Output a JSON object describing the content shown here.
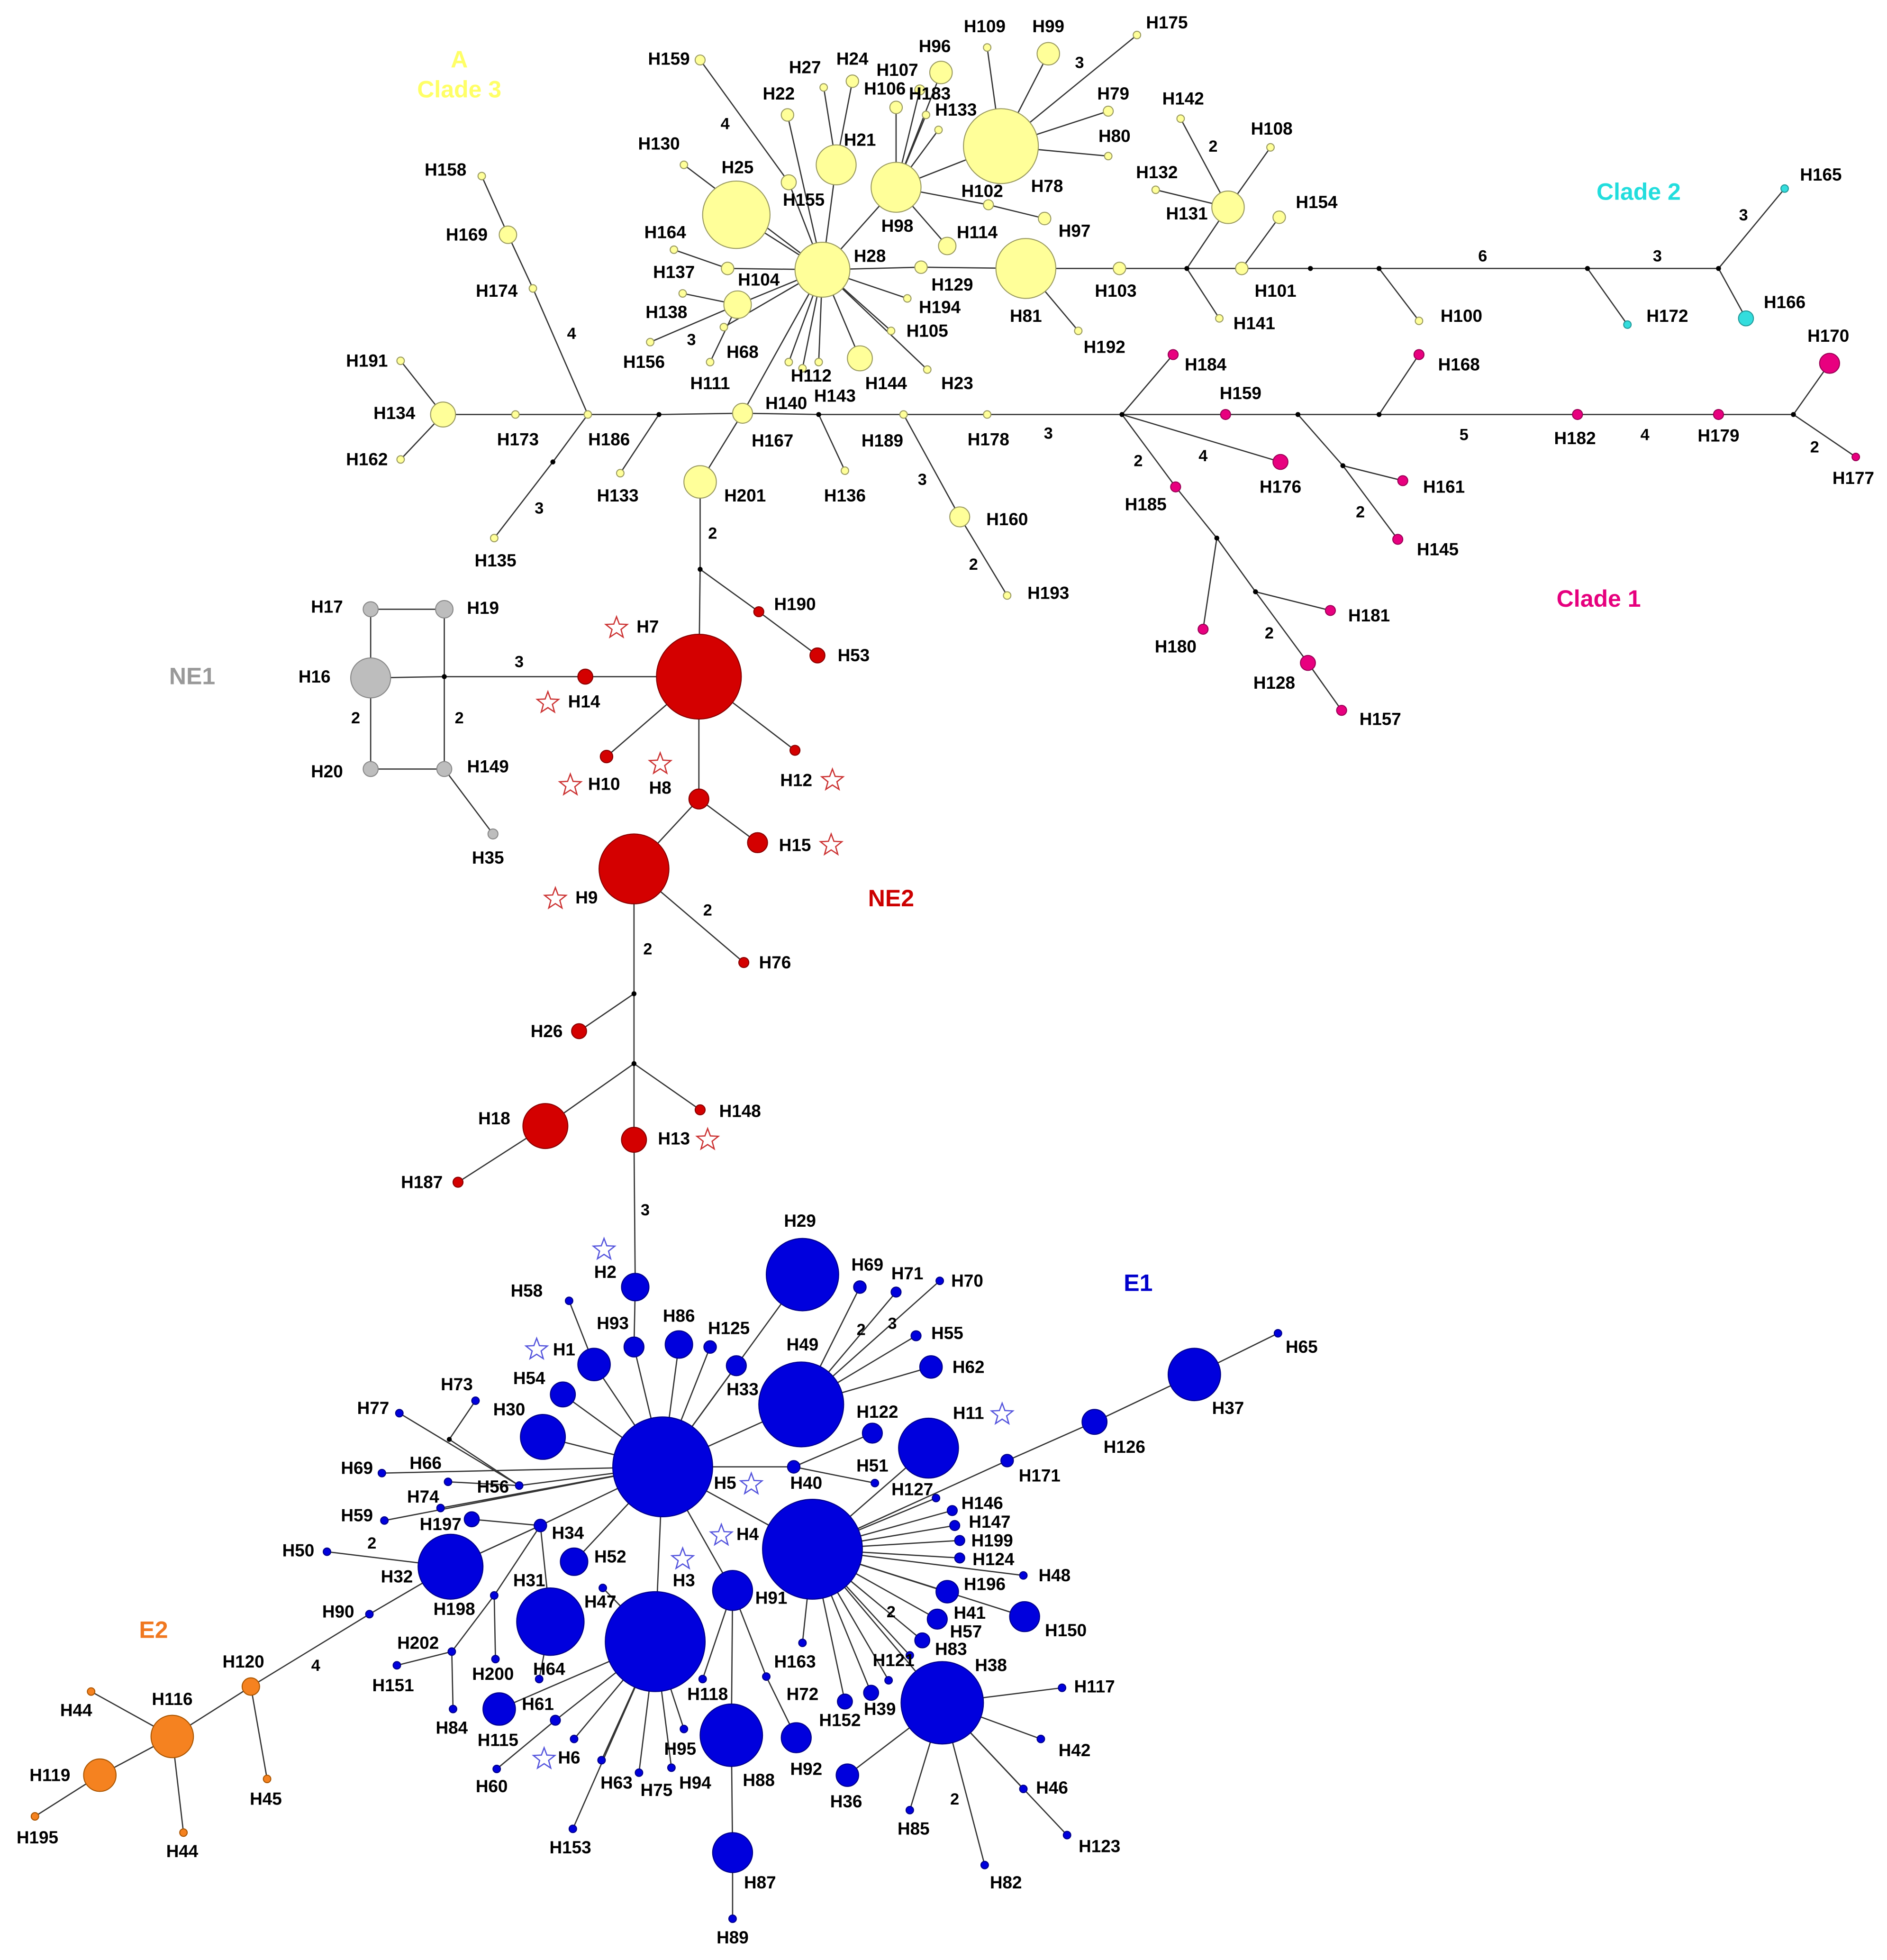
{
  "clade_labels": [
    "A",
    "Clade 3",
    "Clade 2",
    "Clade 1",
    "NE1",
    "NE2",
    "E1",
    "E2"
  ],
  "nodes": [
    "H159",
    "H27",
    "H24",
    "H22",
    "H96",
    "H107",
    "H106",
    "H183",
    "H109",
    "H99",
    "H175",
    "H133",
    "H79",
    "H80",
    "H78",
    "H21",
    "H98",
    "H130",
    "H25",
    "H155",
    "H102",
    "H114",
    "H97",
    "H164",
    "H137",
    "H104",
    "H28",
    "H129",
    "H81",
    "H103",
    "H138",
    "H194",
    "H105",
    "H156",
    "H111",
    "H68",
    "H112",
    "H143",
    "H140",
    "H144",
    "H23",
    "H192",
    "H142",
    "H108",
    "H132",
    "H131",
    "H154",
    "H101",
    "H141",
    "H100",
    "H158",
    "H169",
    "H174",
    "H191",
    "H134",
    "H162",
    "H173",
    "H186",
    "H135",
    "H133",
    "H167",
    "H201",
    "H136",
    "H189",
    "H178",
    "H160",
    "H193",
    "H165",
    "H172",
    "H166",
    "H184",
    "H159",
    "H168",
    "H170",
    "H182",
    "H179",
    "H177",
    "H176",
    "H185",
    "H161",
    "H145",
    "H181",
    "H180",
    "H128",
    "H157",
    "H17",
    "H19",
    "H16",
    "H20",
    "H149",
    "H35",
    "H7",
    "H14",
    "H10",
    "H8",
    "H12",
    "H15",
    "H9",
    "H190",
    "H53",
    "H76",
    "H26",
    "H18",
    "H13",
    "H148",
    "H187",
    "H2",
    "H58",
    "H93",
    "H86",
    "H125",
    "H29",
    "H69",
    "H71",
    "H70",
    "H55",
    "H49",
    "H62",
    "H33",
    "H1",
    "H54",
    "H73",
    "H77",
    "H30",
    "H122",
    "H11",
    "H69",
    "H66",
    "H5",
    "H40",
    "H51",
    "H171",
    "H126",
    "H37",
    "H65",
    "H74",
    "H56",
    "H127",
    "H146",
    "H59",
    "H197",
    "H34",
    "H4",
    "H147",
    "H199",
    "H124",
    "H48",
    "H196",
    "H50",
    "H32",
    "H52",
    "H3",
    "H47",
    "H91",
    "H198",
    "H90",
    "H31",
    "H41",
    "H57",
    "H150",
    "H163",
    "H83",
    "H202",
    "H151",
    "H200",
    "H121",
    "H64",
    "H38",
    "H117",
    "H118",
    "H72",
    "H152",
    "H39",
    "H84",
    "H61",
    "H115",
    "H6",
    "H95",
    "H88",
    "H92",
    "H42",
    "H60",
    "H63",
    "H75",
    "H94",
    "H36",
    "H46",
    "H85",
    "H123",
    "H153",
    "H82",
    "H87",
    "H89",
    "H120",
    "H116",
    "H44",
    "H119",
    "H45",
    "H195",
    "H44"
  ],
  "mutation_counts": [
    4,
    3,
    2,
    6,
    3,
    3,
    4,
    3,
    3,
    3,
    2,
    3,
    2,
    4,
    5,
    4,
    2,
    2,
    2,
    2,
    3,
    2,
    2,
    2,
    2,
    3,
    2,
    3,
    2,
    4,
    2,
    2
  ]
}
